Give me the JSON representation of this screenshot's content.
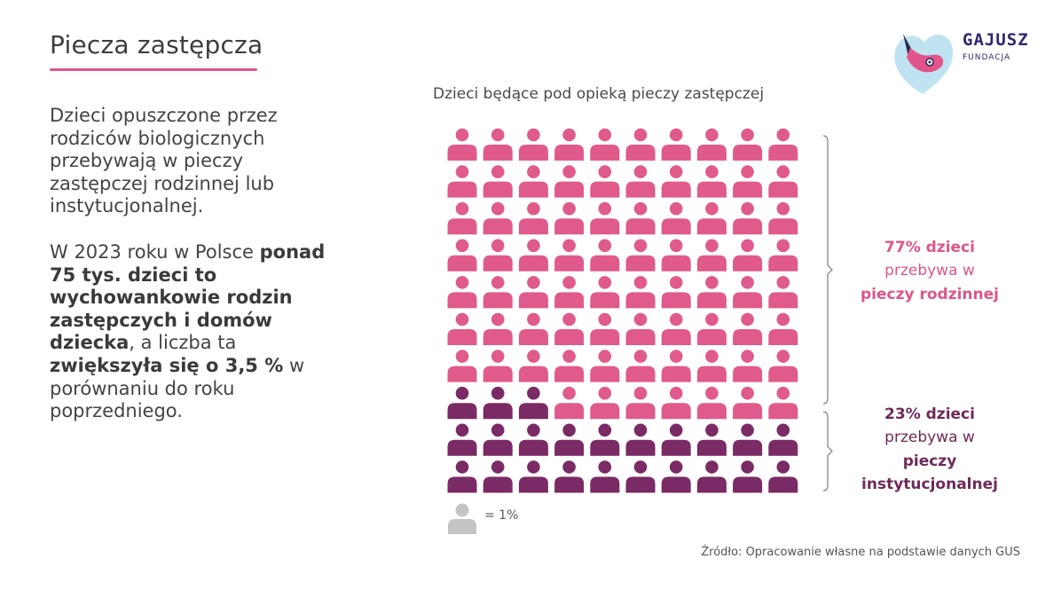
{
  "page": {
    "title": "Piecza zastępcza",
    "accent_color": "#e0548a"
  },
  "left_text": {
    "para1": "Dzieci opuszczone przez rodziców biologicznych przebywają w pieczy zastępczej rodzinnej lub instytucjonalnej.",
    "para2_part1": "W 2023 roku w Polsce ",
    "para2_bold1": "ponad 75 tys. dzieci to wychowankowie rodzin zastępczych i domów dziecka",
    "para2_part2": ", a liczba ta ",
    "para2_bold2": "zwiększyła się o 3,5 %",
    "para2_part3": " w porównaniu do roku poprzedniego."
  },
  "logo": {
    "name": "GAJUSZ",
    "subtitle": "FUNDACJA"
  },
  "chart_data": {
    "type": "waffle",
    "title": "Dzieci będące pod opieką pieczy zastępczej",
    "unit_label": "= 1%",
    "total_units": 100,
    "columns": 10,
    "rows": 10,
    "series": [
      {
        "name": "pieczy rodzinnej",
        "value": 77,
        "color": "#e05a8c"
      },
      {
        "name": "pieczy instytucjonalnej",
        "value": 23,
        "color": "#7a2a64"
      }
    ],
    "legend_icon_color": "#c4c4c4",
    "labels": {
      "family": {
        "pct": "77% dzieci",
        "line2": "przebywa w",
        "line3": "pieczy rodzinnej"
      },
      "institutional": {
        "pct": "23% dzieci",
        "line2": "przebywa w",
        "line3": "pieczy",
        "line4": "instytucjonalnej"
      }
    }
  },
  "source": "Źródło: Opracowanie własne na podstawie danych GUS"
}
